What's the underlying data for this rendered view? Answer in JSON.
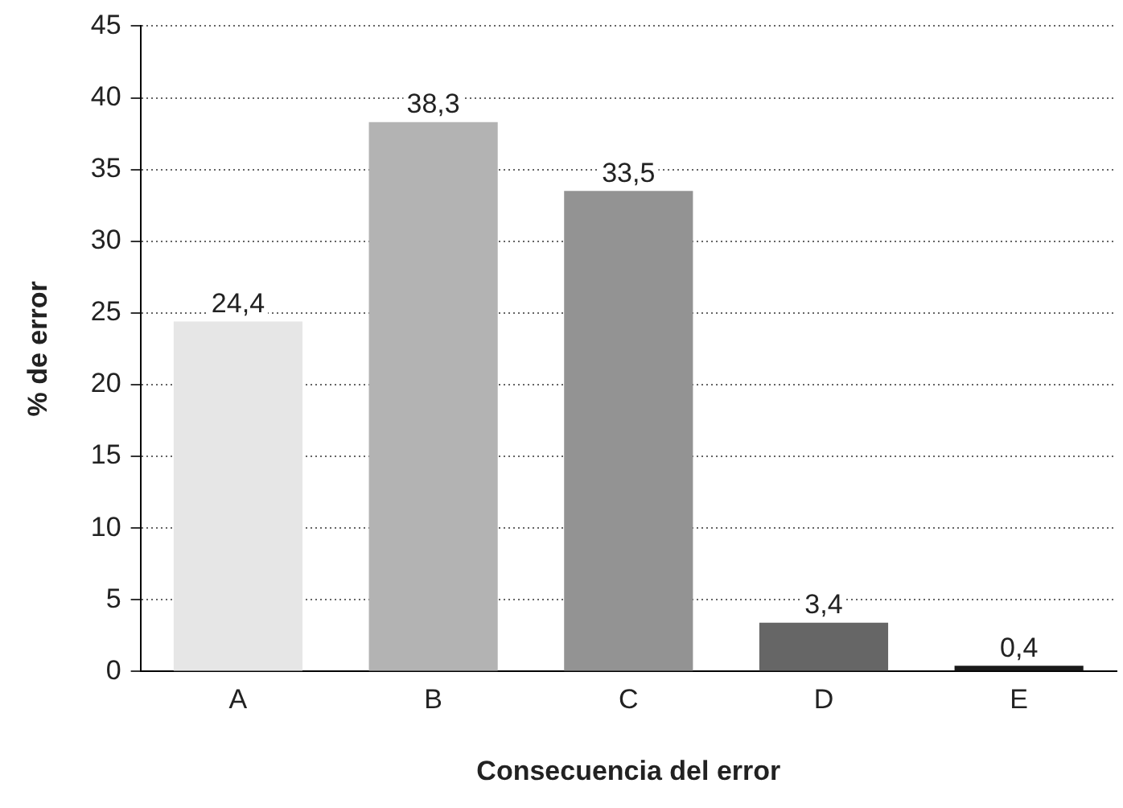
{
  "chart_data": {
    "type": "bar",
    "xlabel": "Consecuencia del error",
    "ylabel": "% de error",
    "categories": [
      "A",
      "B",
      "C",
      "D",
      "E"
    ],
    "values": [
      24.4,
      38.3,
      33.5,
      3.4,
      0.4
    ],
    "value_labels": [
      "24,4",
      "38,3",
      "33,5",
      "3,4",
      "0,4"
    ],
    "colors": [
      "#e6e6e6",
      "#b3b3b3",
      "#939393",
      "#666666",
      "#1a1a1a"
    ],
    "ylim": [
      0,
      45
    ],
    "yticks": [
      0,
      5,
      10,
      15,
      20,
      25,
      30,
      35,
      40,
      45
    ],
    "grid": "y"
  }
}
